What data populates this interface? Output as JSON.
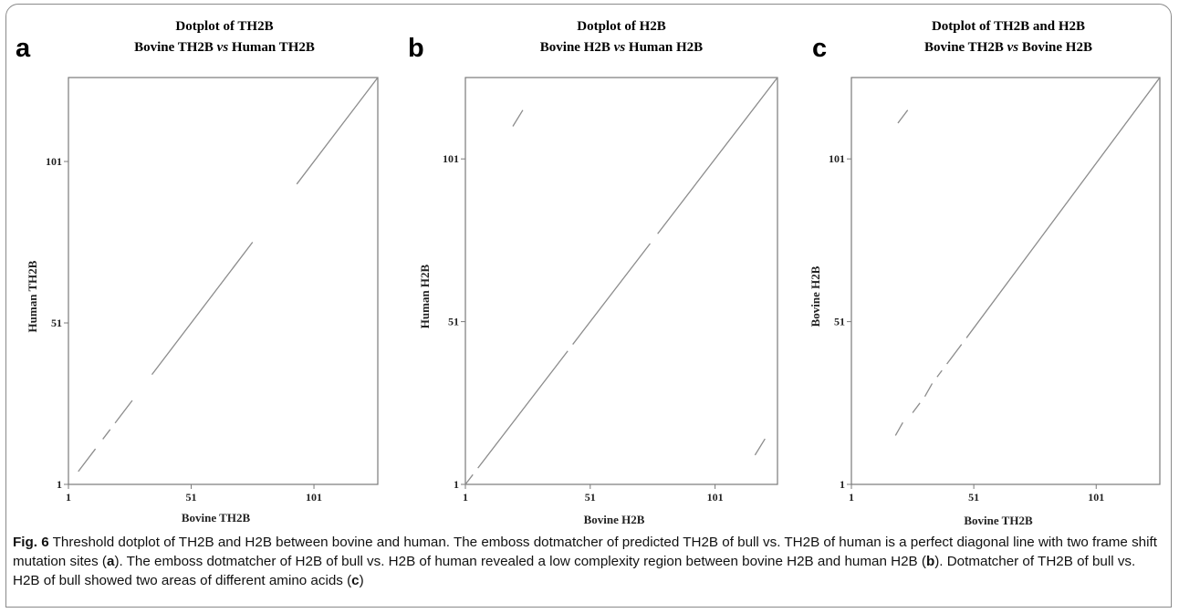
{
  "figure": {
    "caption": {
      "label": "Fig. 6",
      "parts": [
        {
          "text": " Threshold dotplot of TH2B and H2B between bovine and human. The emboss dotmatcher of predicted TH2B of bull vs. TH2B of human is a perfect diagonal line with two frame shift mutation sites ("
        },
        {
          "text": "a",
          "bold": true
        },
        {
          "text": "). The emboss dotmatcher of H2B of bull vs. H2B of human revealed a low complexity region between bovine H2B and human H2B ("
        },
        {
          "text": "b",
          "bold": true
        },
        {
          "text": "). Dotmatcher of TH2B of bull vs. H2B of bull showed two areas of different amino acids ("
        },
        {
          "text": "c",
          "bold": true
        },
        {
          "text": ")"
        }
      ]
    }
  },
  "chart_data": [
    {
      "type": "scatter",
      "panel_letter": "a",
      "title": "Dotplot of TH2B",
      "subtitle_parts": [
        {
          "text": "Bovine TH2B "
        },
        {
          "text": "vs",
          "italic": true
        },
        {
          "text": " Human TH2B"
        }
      ],
      "xlabel": "Bovine TH2B",
      "ylabel": "Human TH2B",
      "xlim": [
        1,
        127
      ],
      "ylim": [
        1,
        127
      ],
      "xticks": [
        1,
        51,
        101
      ],
      "yticks": [
        1,
        51,
        101
      ],
      "segments": [
        [
          [
            5,
            5
          ],
          [
            12,
            12
          ]
        ],
        [
          [
            15,
            15
          ],
          [
            18,
            18
          ]
        ],
        [
          [
            20,
            20
          ],
          [
            27,
            27
          ]
        ],
        [
          [
            35,
            35
          ],
          [
            76,
            76
          ]
        ],
        [
          [
            94,
            94
          ],
          [
            127,
            127
          ]
        ]
      ]
    },
    {
      "type": "scatter",
      "panel_letter": "b",
      "title": "Dotplot of H2B",
      "subtitle_parts": [
        {
          "text": "Bovine H2B "
        },
        {
          "text": "vs",
          "italic": true
        },
        {
          "text": " Human H2B"
        }
      ],
      "xlabel": "Bovine H2B",
      "ylabel": "Human H2B",
      "xlim": [
        1,
        126
      ],
      "ylim": [
        1,
        126
      ],
      "xticks": [
        1,
        51,
        101
      ],
      "yticks": [
        1,
        51,
        101
      ],
      "segments": [
        [
          [
            1,
            1
          ],
          [
            4,
            4
          ]
        ],
        [
          [
            6,
            6
          ],
          [
            42,
            42
          ]
        ],
        [
          [
            44,
            44
          ],
          [
            75,
            75
          ]
        ],
        [
          [
            78,
            78
          ],
          [
            126,
            126
          ]
        ],
        [
          [
            20,
            111
          ],
          [
            24,
            116
          ]
        ],
        [
          [
            117,
            10
          ],
          [
            121,
            15
          ]
        ]
      ]
    },
    {
      "type": "scatter",
      "panel_letter": "c",
      "title": "Dotplot of TH2B and H2B",
      "subtitle_parts": [
        {
          "text": "Bovine TH2B "
        },
        {
          "text": "vs",
          "italic": true
        },
        {
          "text": " Bovine H2B"
        }
      ],
      "xlabel": "Bovine TH2B",
      "ylabel": "Bovine H2B",
      "xlim": [
        1,
        127
      ],
      "ylim": [
        1,
        126
      ],
      "xticks": [
        1,
        51,
        101
      ],
      "yticks": [
        1,
        51,
        101
      ],
      "segments": [
        [
          [
            19,
            16
          ],
          [
            22,
            20
          ]
        ],
        [
          [
            26,
            23
          ],
          [
            29,
            26
          ]
        ],
        [
          [
            31,
            28
          ],
          [
            34,
            32
          ]
        ],
        [
          [
            36,
            34
          ],
          [
            38,
            36
          ]
        ],
        [
          [
            40,
            38
          ],
          [
            46,
            44
          ]
        ],
        [
          [
            48,
            46
          ],
          [
            127,
            126
          ]
        ],
        [
          [
            20,
            112
          ],
          [
            24,
            116
          ]
        ]
      ]
    }
  ]
}
